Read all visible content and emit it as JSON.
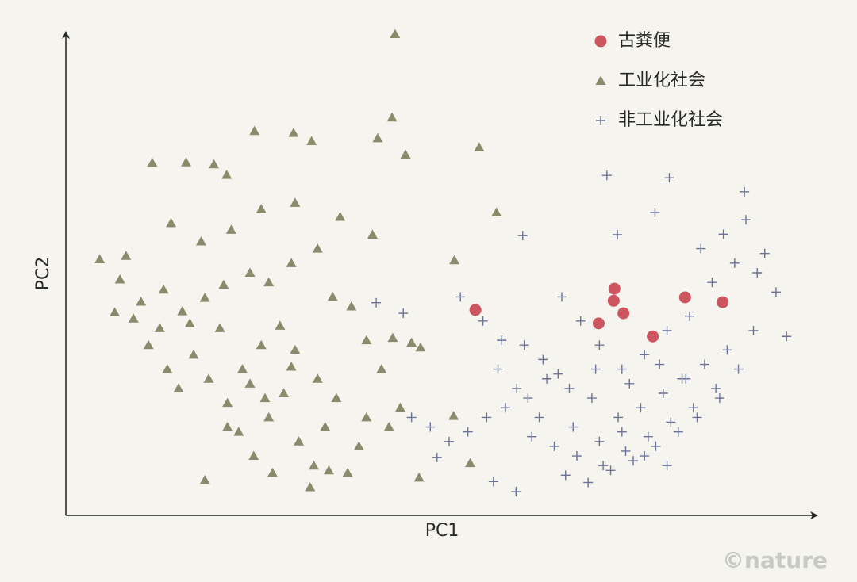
{
  "chart_data": {
    "type": "scatter",
    "x_label": "PC1",
    "y_label": "PC2",
    "credit": "©nature",
    "xlim": [
      0,
      100
    ],
    "ylim": [
      0,
      100
    ],
    "grid": false,
    "legend": "upper right",
    "series": [
      {
        "name": "古粪便",
        "marker": "circle",
        "color": "#cc5560",
        "x": [
          54.5,
          73.0,
          72.9,
          74.2,
          70.9,
          78.1,
          82.4,
          87.4
        ],
        "y": [
          42.3,
          46.7,
          44.2,
          41.6,
          39.5,
          36.8,
          44.9,
          43.9
        ]
      },
      {
        "name": "工业化社会",
        "marker": "triangle",
        "color": "#8c8a6c",
        "x": [
          43.8,
          43.4,
          55.0,
          57.3,
          51.7,
          25.1,
          4.5,
          11.5,
          16.0,
          19.7,
          21.4,
          30.3,
          32.7,
          41.5,
          45.2,
          40.8,
          36.5,
          30.5,
          26.0,
          22.0,
          18.0,
          14.0,
          8.0,
          7.2,
          6.5,
          10.0,
          13.0,
          15.5,
          18.5,
          21.0,
          24.5,
          27.0,
          30.0,
          33.5,
          35.5,
          38.0,
          40.0,
          42.0,
          43.5,
          46.0,
          47.2,
          43.0,
          44.5,
          47.0,
          53.8,
          51.6,
          11.0,
          13.5,
          15.0,
          17.0,
          19.0,
          21.5,
          23.0,
          25.0,
          27.0,
          29.0,
          31.0,
          33.0,
          34.5,
          36.0,
          37.5,
          39.0,
          40.0,
          30.5,
          28.5,
          26.0,
          23.5,
          20.5,
          16.5,
          12.5,
          9.0,
          18.5,
          27.5,
          32.5,
          35.0,
          24.5,
          21.5,
          33.5,
          30.0,
          26.5
        ],
        "y": [
          99.5,
          82.2,
          76.0,
          62.5,
          52.6,
          79.4,
          52.8,
          72.8,
          72.9,
          72.5,
          70.3,
          79.0,
          77.3,
          77.9,
          74.5,
          57.9,
          61.6,
          64.5,
          63.2,
          58.9,
          56.5,
          60.3,
          53.5,
          48.6,
          41.8,
          44.0,
          46.5,
          42.0,
          44.8,
          47.5,
          50.0,
          48.0,
          52.0,
          55.0,
          45.0,
          43.0,
          36.0,
          30.0,
          36.5,
          35.5,
          34.5,
          18.0,
          22.0,
          7.5,
          10.5,
          20.3,
          35.0,
          30.0,
          26.0,
          33.0,
          28.0,
          23.0,
          17.0,
          12.0,
          20.0,
          25.0,
          15.0,
          10.0,
          18.0,
          24.0,
          8.5,
          14.0,
          20.0,
          34.0,
          39.0,
          35.0,
          30.0,
          38.5,
          39.5,
          38.5,
          40.5,
          7.0,
          8.5,
          5.5,
          9.0,
          27.0,
          18.0,
          28.0,
          30.5,
          24.0
        ]
      },
      {
        "name": "非工业化社会",
        "marker": "plus",
        "color": "#6b7396",
        "x": [
          72.0,
          80.3,
          90.3,
          78.4,
          60.8,
          73.4,
          95.9,
          59.9,
          56.9,
          49.4,
          41.3,
          44.9,
          52.5,
          55.5,
          58.0,
          61.0,
          63.5,
          66.0,
          68.5,
          71.0,
          74.0,
          77.0,
          80.0,
          83.0,
          86.0,
          89.0,
          92.0,
          94.5,
          84.5,
          87.5,
          90.5,
          93.0,
          82.0,
          79.5,
          76.5,
          73.5,
          70.0,
          67.0,
          64.0,
          61.5,
          58.5,
          56.0,
          53.5,
          51.0,
          48.5,
          46.0,
          62.0,
          65.0,
          68.0,
          71.5,
          74.5,
          77.5,
          80.5,
          83.5,
          86.5,
          89.5,
          66.5,
          69.5,
          72.5,
          75.5,
          78.5,
          81.5,
          84.0,
          87.0,
          63.0,
          67.5,
          71.0,
          74.0,
          77.0,
          80.0,
          91.5,
          88.0,
          85.0,
          82.5,
          79.0,
          75.0,
          70.5,
          65.5,
          60.0,
          57.5
        ],
        "y": [
          70.2,
          69.7,
          66.8,
          62.5,
          57.7,
          57.9,
          36.8,
          4.6,
          6.7,
          11.7,
          43.8,
          41.6,
          45.0,
          40.0,
          36.0,
          35.0,
          32.0,
          45.0,
          40.0,
          35.0,
          30.0,
          33.0,
          38.0,
          41.0,
          48.0,
          52.0,
          50.0,
          46.0,
          55.0,
          58.0,
          61.0,
          54.0,
          28.0,
          25.0,
          22.0,
          20.0,
          24.0,
          26.0,
          28.0,
          24.0,
          22.0,
          20.0,
          17.0,
          15.0,
          18.0,
          20.0,
          16.0,
          14.0,
          12.0,
          10.0,
          13.0,
          16.0,
          19.0,
          22.0,
          26.0,
          30.0,
          8.0,
          6.5,
          9.0,
          11.0,
          14.0,
          17.0,
          20.0,
          24.0,
          20.0,
          18.0,
          15.0,
          17.0,
          12.0,
          10.0,
          38.0,
          34.0,
          31.0,
          28.0,
          31.0,
          27.0,
          30.0,
          29.0,
          26.0,
          30.0
        ]
      }
    ]
  }
}
